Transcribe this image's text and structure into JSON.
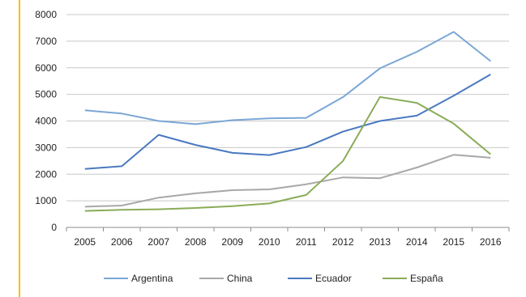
{
  "chart_data": {
    "type": "line",
    "categories": [
      "2005",
      "2006",
      "2007",
      "2008",
      "2009",
      "2010",
      "2011",
      "2012",
      "2013",
      "2014",
      "2015",
      "2016"
    ],
    "ylim": [
      0,
      8000
    ],
    "yticks": [
      0,
      1000,
      2000,
      3000,
      4000,
      5000,
      6000,
      7000,
      8000
    ],
    "ytick_labels": [
      "0",
      "1000",
      "2000",
      "3000",
      "4000",
      "5000",
      "6000",
      "7000",
      "8000"
    ],
    "grid": "horizontal",
    "legend_position": "bottom",
    "series": [
      {
        "name": "Argentina",
        "color": "#7ba7d6",
        "values": [
          4400,
          4280,
          4000,
          3880,
          4030,
          4100,
          4120,
          4900,
          5980,
          6600,
          7350,
          6250
        ]
      },
      {
        "name": "China",
        "color": "#a8a8a8",
        "values": [
          780,
          820,
          1120,
          1280,
          1400,
          1430,
          1620,
          1880,
          1850,
          2250,
          2730,
          2620
        ]
      },
      {
        "name": "Ecuador",
        "color": "#4a79c0",
        "values": [
          2200,
          2300,
          3480,
          3100,
          2800,
          2720,
          3020,
          3600,
          4000,
          4200,
          4950,
          5750
        ]
      },
      {
        "name": "España",
        "color": "#8aac58",
        "values": [
          620,
          660,
          680,
          730,
          800,
          900,
          1220,
          2500,
          4900,
          4680,
          3900,
          2750
        ]
      }
    ]
  }
}
